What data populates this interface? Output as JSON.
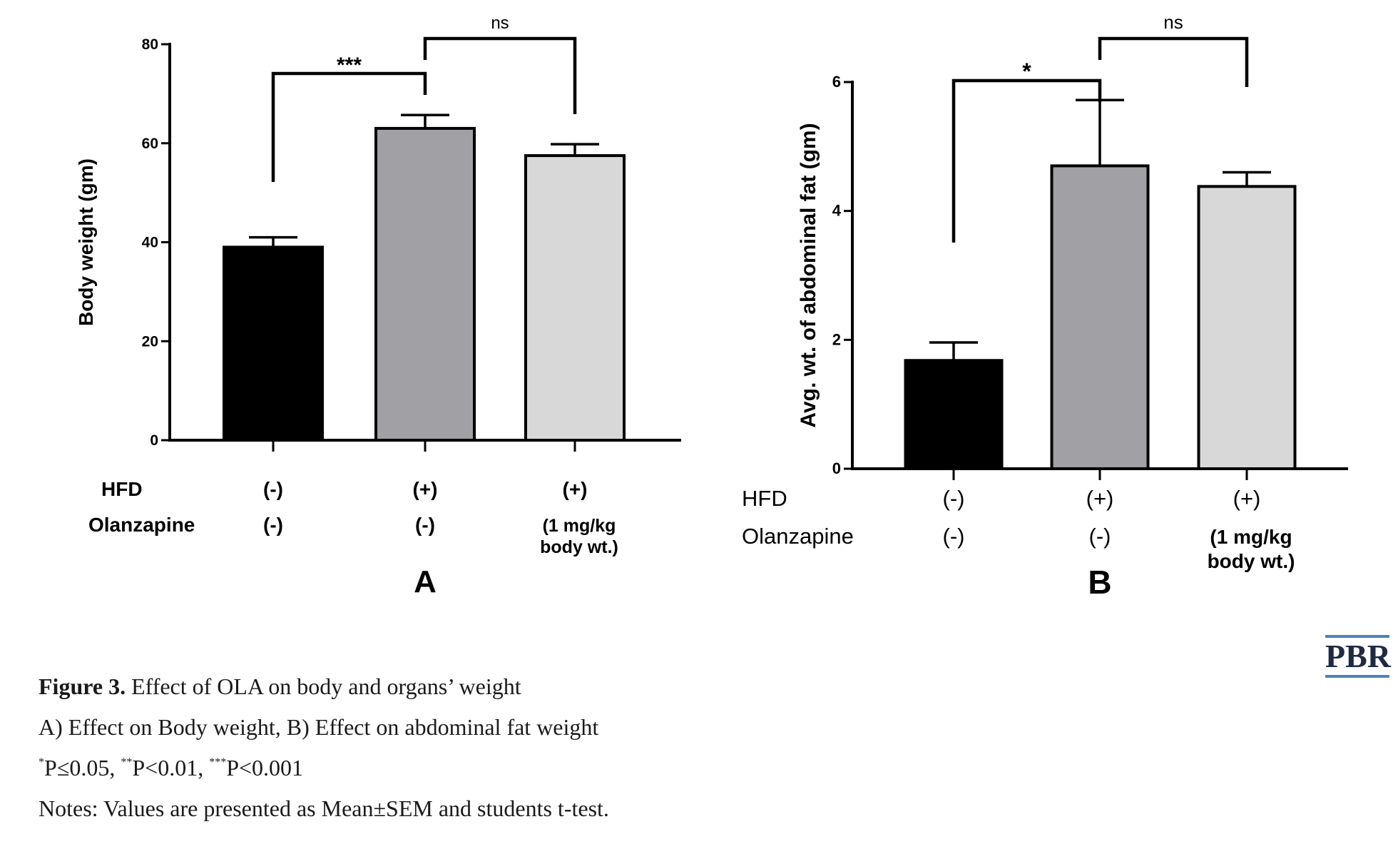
{
  "chart_data": [
    {
      "type": "bar",
      "panel_label": "A",
      "ylabel": "Body weight (gm)",
      "ylim": [
        0,
        80
      ],
      "yticks": [
        "0",
        "20",
        "40",
        "60",
        "80"
      ],
      "categories": [
        "HFD (-) / Olanzapine (-)",
        "HFD (+) / Olanzapine (-)",
        "HFD (+) / Olanzapine (1 mg/kg body wt.)"
      ],
      "values": [
        39,
        63,
        57.5
      ],
      "errors": [
        2,
        2.7,
        2.3
      ],
      "colors": [
        "#000000",
        "#a0a0a5",
        "#d8d8d8"
      ],
      "row_labels": [
        "HFD",
        "Olanzapine"
      ],
      "hfd": [
        "(-)",
        "(+)",
        "(+)"
      ],
      "olanzapine": [
        [
          "(-)"
        ],
        [
          "(-)"
        ],
        [
          "(1 mg/kg",
          "body wt.)"
        ]
      ],
      "significance": [
        {
          "from": 0,
          "to": 1,
          "label": "***"
        },
        {
          "from": 1,
          "to": 2,
          "label": "ns"
        }
      ]
    },
    {
      "type": "bar",
      "panel_label": "B",
      "ylabel": "Avg. wt. of abdominal fat (gm)",
      "ylim": [
        0,
        6
      ],
      "yticks": [
        "0",
        "2",
        "4",
        "6"
      ],
      "categories": [
        "HFD (-) / Olanzapine (-)",
        "HFD (+) / Olanzapine (-)",
        "HFD (+) / Olanzapine (1 mg/kg body wt.)"
      ],
      "values": [
        1.68,
        4.7,
        4.38
      ],
      "errors": [
        0.28,
        1.02,
        0.22
      ],
      "colors": [
        "#000000",
        "#a0a0a5",
        "#d8d8d8"
      ],
      "row_labels": [
        "HFD",
        "Olanzapine"
      ],
      "hfd": [
        "(-)",
        "(+)",
        "(+)"
      ],
      "olanzapine": [
        [
          "(-)"
        ],
        [
          "(-)"
        ],
        [
          "(1 mg/kg",
          "body wt.)"
        ]
      ],
      "significance": [
        {
          "from": 0,
          "to": 1,
          "label": "*"
        },
        {
          "from": 1,
          "to": 2,
          "label": "ns"
        }
      ]
    }
  ],
  "logo": "PBR",
  "caption": {
    "figure_label": "Figure 3.",
    "figure_title": "Effect of OLA on body and organs’ weight",
    "line2": "A) Effect on Body weight, B) Effect on abdominal fat weight",
    "p1_sym": "*",
    "p1_text": "P≤0.05, ",
    "p2_sym": "**",
    "p2_text": "P<0.01, ",
    "p3_sym": "***",
    "p3_text": "P<0.001",
    "notes": "Notes: Values are presented as Mean±SEM and students t-test."
  },
  "colors": {
    "logo_bar": "#4f81bd",
    "logo_text": "#1f2a44"
  }
}
